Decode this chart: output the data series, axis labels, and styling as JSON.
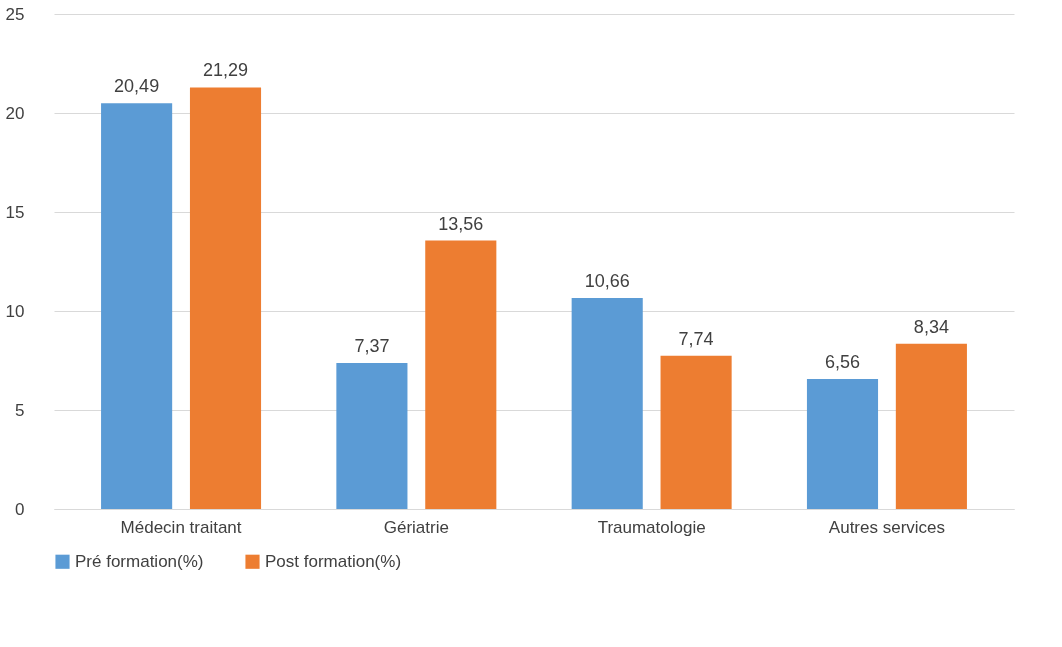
{
  "chart_data": {
    "type": "bar",
    "categories": [
      "Médecin traitant",
      "Gériatrie",
      "Traumatologie",
      "Autres services"
    ],
    "series": [
      {
        "name": "Pré formation(%)",
        "color": "#5b9bd5",
        "values": [
          20.49,
          7.37,
          10.66,
          6.56
        ],
        "value_labels": [
          "20,49",
          "7,37",
          "10,66",
          "6,56"
        ]
      },
      {
        "name": "Post formation(%)",
        "color": "#ed7d31",
        "values": [
          21.29,
          13.56,
          7.74,
          8.34
        ],
        "value_labels": [
          "21,29",
          "13,56",
          "7,74",
          "8,34"
        ]
      }
    ],
    "ylim": [
      0,
      25
    ],
    "yticks": [
      0,
      5,
      10,
      15,
      20,
      25
    ],
    "grid": "y",
    "legend": "bottom"
  }
}
